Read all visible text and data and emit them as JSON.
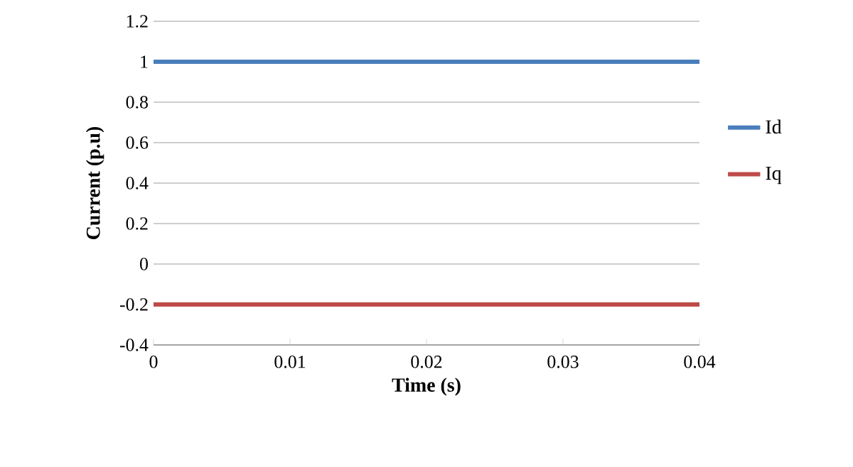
{
  "chart_data": {
    "type": "line",
    "xlabel": "Time (s)",
    "ylabel": "Current (p.u)",
    "series": [
      {
        "name": "Id",
        "color": "#4a7ebb",
        "values": [
          1,
          1
        ]
      },
      {
        "name": "Iq",
        "color": "#be4b48",
        "values": [
          -0.2,
          -0.2
        ]
      }
    ],
    "x": [
      0,
      0.04
    ],
    "xlim": [
      0,
      0.04
    ],
    "xticks": [
      0,
      0.01,
      0.02,
      0.03,
      0.04
    ],
    "ylim": [
      -0.4,
      1.2
    ],
    "yticks": [
      -0.4,
      -0.2,
      0,
      0.2,
      0.4,
      0.6,
      0.8,
      1,
      1.2
    ],
    "grid": "y",
    "legend": "right",
    "marker": "none",
    "line_style": "solid"
  }
}
